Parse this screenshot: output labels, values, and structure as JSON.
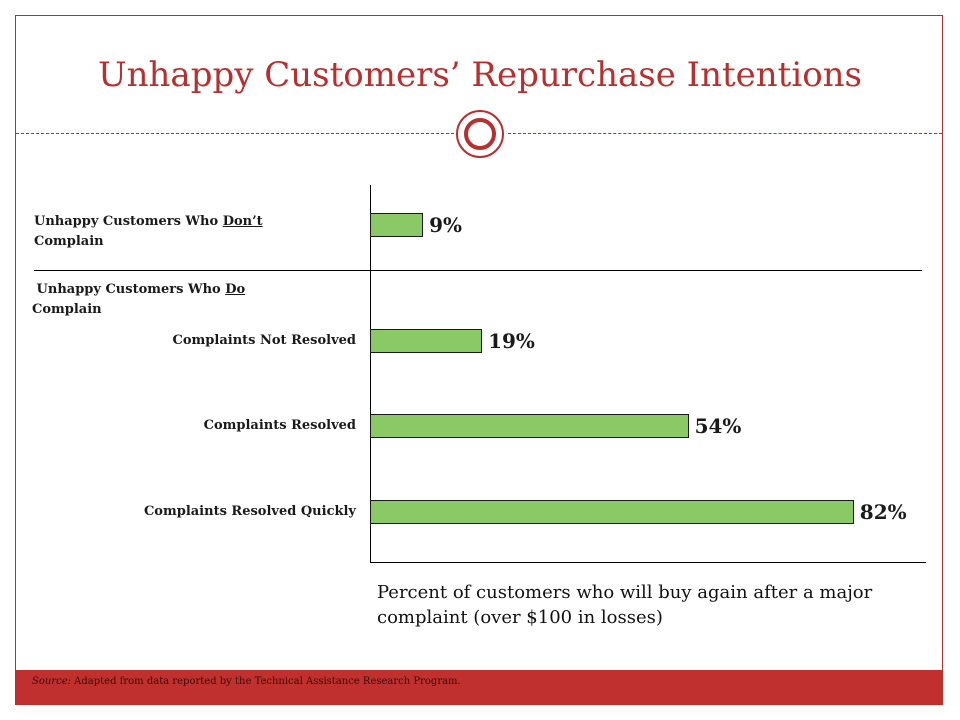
{
  "title": "Unhappy Customers’ Repurchase Intentions",
  "groups": {
    "dont_prefix": "Unhappy Customers Who ",
    "dont_em": "Don’t",
    "dont_suffix": "Complain",
    "do_prefix": "Unhappy Customers Who ",
    "do_em": "Do",
    "do_suffix": "Complain"
  },
  "caption": "Percent of customers who will buy again after a major complaint (over $100 in losses)",
  "source": {
    "label": "Source:",
    "text": "Adapted from data reported by the Technical Assistance Research Program."
  },
  "colors": {
    "accent": "#b5302f",
    "bar": "#8bc866",
    "footer": "#c0302e"
  },
  "chart_data": {
    "type": "bar",
    "orientation": "horizontal",
    "categories": [
      "",
      "Complaints Not Resolved",
      "Complaints Resolved",
      "Complaints Resolved Quickly"
    ],
    "values": [
      9,
      19,
      54,
      82
    ],
    "value_labels": [
      "9%",
      "19%",
      "54%",
      "82%"
    ],
    "title": "Unhappy Customers’ Repurchase Intentions",
    "xlabel": "Percent of customers who will buy again after a major complaint (over $100 in losses)",
    "ylabel": "",
    "xlim": [
      0,
      95
    ],
    "grid": false
  }
}
